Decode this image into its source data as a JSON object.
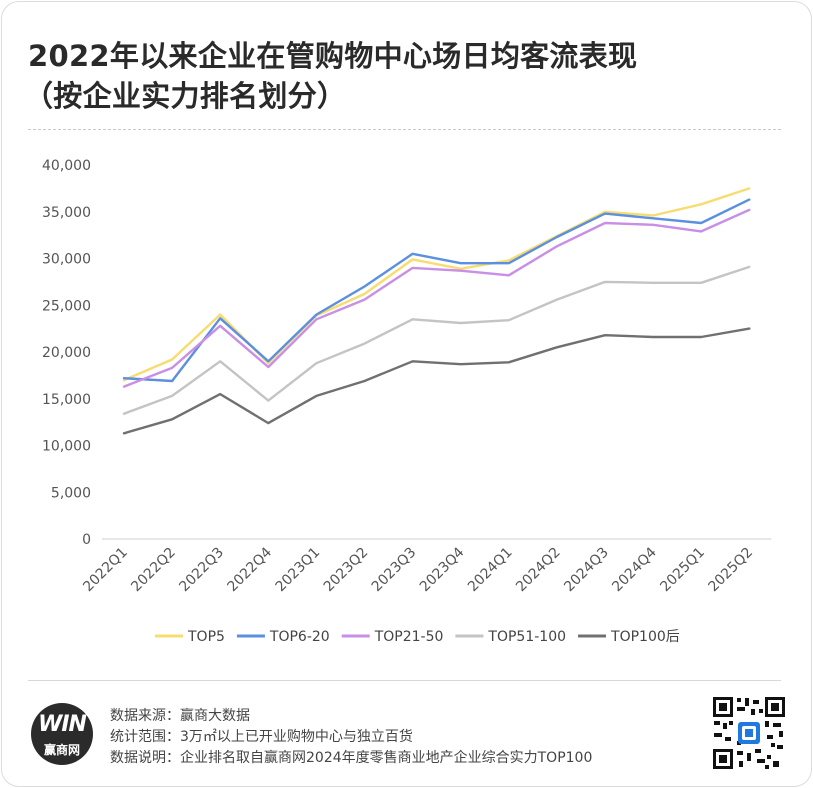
{
  "title_line1": "2022年以来企业在管购物中心场日均客流表现",
  "title_line2": "（按企业实力排名划分）",
  "chart_data": {
    "type": "line",
    "categories": [
      "2022Q1",
      "2022Q2",
      "2022Q3",
      "2022Q4",
      "2023Q1",
      "2023Q2",
      "2023Q3",
      "2023Q4",
      "2024Q1",
      "2024Q2",
      "2024Q3",
      "2024Q4",
      "2025Q1",
      "2025Q2"
    ],
    "ylim": [
      0,
      40000
    ],
    "yticks": [
      0,
      5000,
      10000,
      15000,
      20000,
      25000,
      30000,
      35000,
      40000
    ],
    "ytick_labels": [
      "0",
      "5,000",
      "10,000",
      "15,000",
      "20,000",
      "25,000",
      "30,000",
      "35,000",
      "40,000"
    ],
    "legend_position": "bottom",
    "grid": false,
    "series": [
      {
        "name": "TOP5",
        "color": "#f7dc6f",
        "values": [
          17000,
          19200,
          24000,
          18800,
          23900,
          26200,
          29900,
          28900,
          29800,
          32400,
          35000,
          34600,
          35800,
          37500
        ]
      },
      {
        "name": "TOP6-20",
        "color": "#5b8fe0",
        "values": [
          17200,
          16900,
          23600,
          19000,
          24000,
          27000,
          30500,
          29500,
          29500,
          32300,
          34800,
          34300,
          33800,
          36300
        ]
      },
      {
        "name": "TOP21-50",
        "color": "#c98ee6",
        "values": [
          16300,
          18300,
          22800,
          18400,
          23500,
          25600,
          29000,
          28700,
          28200,
          31300,
          33800,
          33600,
          32900,
          35200
        ]
      },
      {
        "name": "TOP51-100",
        "color": "#c4c4c4",
        "values": [
          13400,
          15300,
          19000,
          14800,
          18800,
          20900,
          23500,
          23100,
          23400,
          25600,
          27500,
          27400,
          27400,
          29100
        ]
      },
      {
        "name": "TOP100后",
        "color": "#707070",
        "values": [
          11300,
          12800,
          15500,
          12400,
          15300,
          16900,
          19000,
          18700,
          18900,
          20500,
          21800,
          21600,
          21600,
          22500
        ]
      }
    ]
  },
  "footer": {
    "source": "数据来源：赢商大数据",
    "scope": "统计范围：3万㎡以上已开业购物中心与独立百货",
    "note": "数据说明：企业排名取自赢商网2024年度零售商业地产企业综合实力TOP100"
  },
  "logo": {
    "mark": "WIN",
    "text": "赢商网"
  }
}
